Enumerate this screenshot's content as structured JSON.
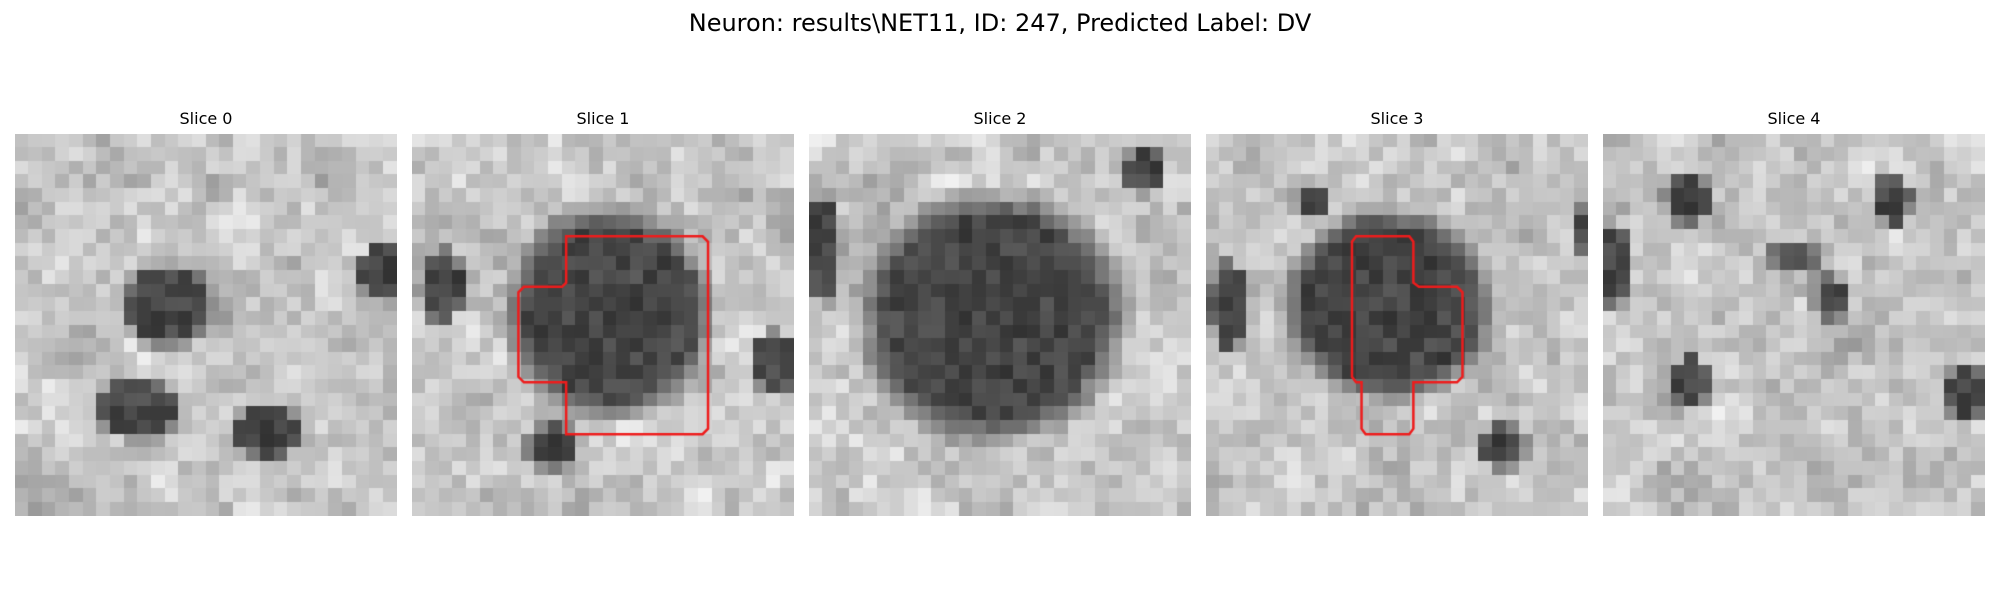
{
  "figure": {
    "title": "Neuron: results\\NET11, ID: 247, Predicted Label: DV"
  },
  "panels": [
    {
      "title": "Slice 0",
      "has_outline": false,
      "dark_blobs": [
        [
          0.96,
          0.36,
          0.05,
          0.06
        ],
        [
          0.32,
          0.72,
          0.09,
          0.07
        ],
        [
          0.66,
          0.78,
          0.08,
          0.06
        ],
        [
          0.4,
          0.45,
          0.1,
          0.09
        ]
      ]
    },
    {
      "title": "Slice 1",
      "has_outline": true,
      "dark_blobs": [
        [
          0.52,
          0.47,
          0.22,
          0.22
        ],
        [
          0.08,
          0.4,
          0.05,
          0.08
        ],
        [
          0.95,
          0.6,
          0.05,
          0.07
        ],
        [
          0.37,
          0.82,
          0.06,
          0.05
        ]
      ]
    },
    {
      "title": "Slice 2",
      "has_outline": false,
      "dark_blobs": [
        [
          0.48,
          0.48,
          0.28,
          0.26
        ],
        [
          0.88,
          0.1,
          0.05,
          0.05
        ],
        [
          0.04,
          0.3,
          0.04,
          0.12
        ]
      ]
    },
    {
      "title": "Slice 3",
      "has_outline": true,
      "dark_blobs": [
        [
          0.48,
          0.45,
          0.22,
          0.2
        ],
        [
          0.28,
          0.18,
          0.04,
          0.04
        ],
        [
          0.06,
          0.45,
          0.04,
          0.1
        ],
        [
          0.99,
          0.25,
          0.03,
          0.05
        ],
        [
          0.78,
          0.82,
          0.05,
          0.05
        ]
      ]
    },
    {
      "title": "Slice 4",
      "has_outline": false,
      "dark_blobs": [
        [
          0.22,
          0.17,
          0.05,
          0.06
        ],
        [
          0.76,
          0.17,
          0.04,
          0.06
        ],
        [
          0.03,
          0.35,
          0.04,
          0.09
        ],
        [
          0.23,
          0.65,
          0.04,
          0.06
        ],
        [
          0.6,
          0.43,
          0.04,
          0.05
        ],
        [
          0.5,
          0.32,
          0.05,
          0.04
        ],
        [
          0.95,
          0.68,
          0.05,
          0.06
        ]
      ]
    }
  ],
  "style": {
    "outline_color": "#ee1c1c"
  }
}
